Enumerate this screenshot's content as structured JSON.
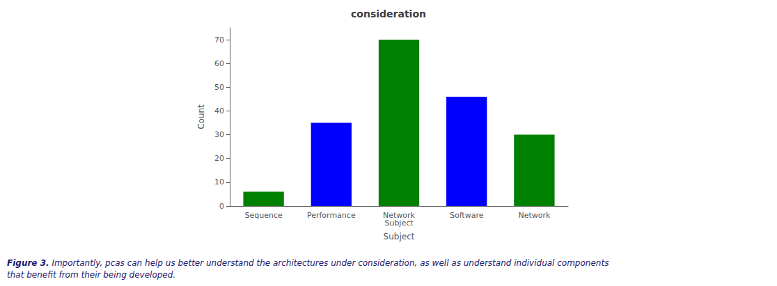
{
  "chart_data": {
    "type": "bar",
    "title": "consideration",
    "xlabel": "Subject",
    "ylabel": "Count",
    "categories": [
      "Sequence",
      "Performance",
      "Network\nSubject",
      "Software",
      "Network"
    ],
    "values": [
      6,
      35,
      70,
      46,
      30
    ],
    "colors": [
      "#008000",
      "#0000ff",
      "#008000",
      "#0000ff",
      "#008000"
    ],
    "ylim": [
      0,
      75
    ],
    "yticks": [
      0,
      10,
      20,
      30,
      40,
      50,
      60,
      70
    ],
    "grid": false,
    "annotations": [
      "Figure 3.",
      "Importantly, pcas can help us better understand the architectures under consideration, as well as understand individual components\nthat benefit from their being developed."
    ]
  }
}
